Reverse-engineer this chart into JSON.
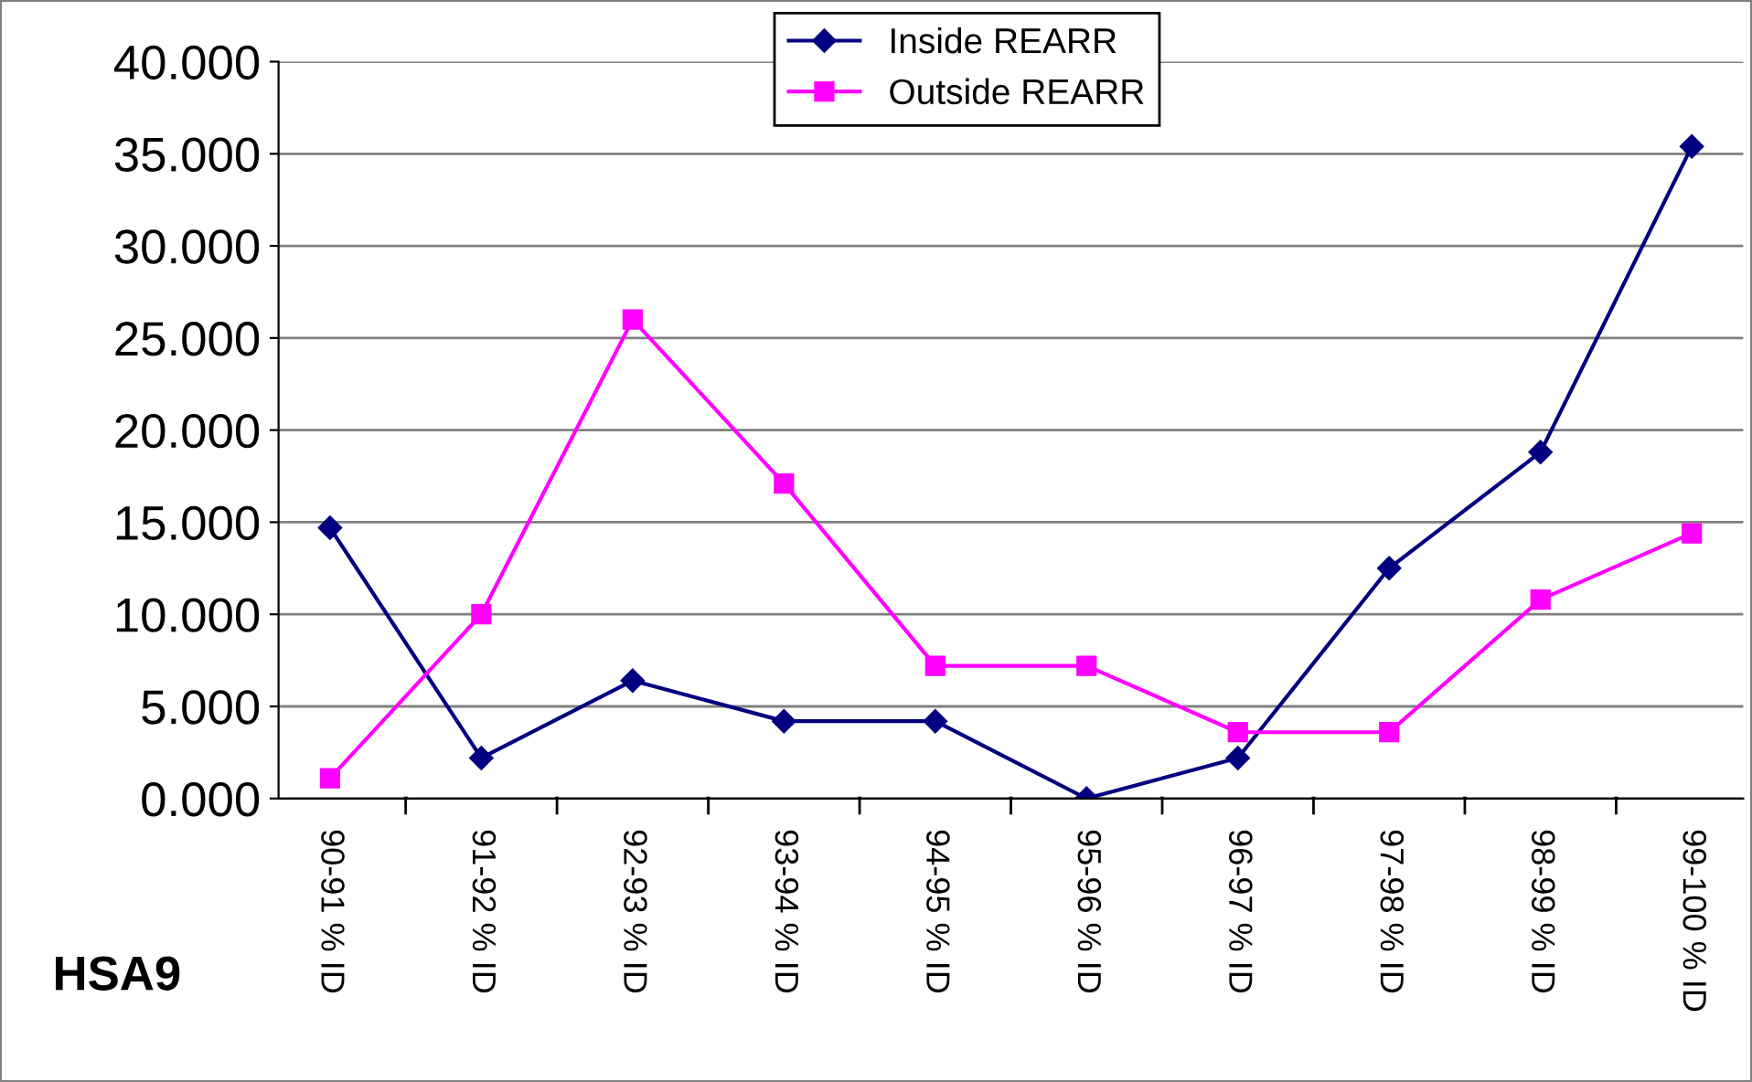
{
  "chart_data": {
    "type": "line",
    "categories": [
      "90-91 % ID",
      "91-92 % ID",
      "92-93 % ID",
      "93-94 % ID",
      "94-95 % ID",
      "95-96 % ID",
      "96-97 % ID",
      "97-98 % ID",
      "98-99 % ID",
      "99-100 % ID"
    ],
    "series": [
      {
        "name": "Inside REARR",
        "color": "#000080",
        "marker": "diamond",
        "values": [
          14.7,
          2.2,
          6.4,
          4.2,
          4.2,
          0.0,
          2.2,
          12.5,
          18.8,
          35.4
        ]
      },
      {
        "name": "Outside REARR",
        "color": "#ff00ff",
        "marker": "square",
        "values": [
          1.1,
          10.0,
          26.0,
          17.1,
          7.2,
          7.2,
          3.6,
          3.6,
          10.8,
          14.4
        ]
      }
    ],
    "ylim": [
      0,
      40
    ],
    "yticks": [
      {
        "value": 0,
        "label": "0.000"
      },
      {
        "value": 5,
        "label": "5.000"
      },
      {
        "value": 10,
        "label": "10.000"
      },
      {
        "value": 15,
        "label": "15.000"
      },
      {
        "value": 20,
        "label": "20.000"
      },
      {
        "value": 25,
        "label": "25.000"
      },
      {
        "value": 30,
        "label": "30.000"
      },
      {
        "value": 35,
        "label": "35.000"
      },
      {
        "value": 40,
        "label": "40.000"
      }
    ],
    "grid": "y",
    "legend": "top",
    "line_style": "solid",
    "annotations": [
      "HSA9"
    ]
  }
}
